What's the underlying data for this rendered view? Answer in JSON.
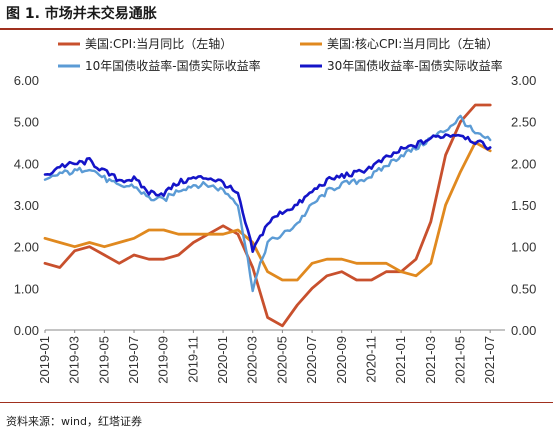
{
  "title": "图 1. 市场并未交易通胀",
  "source": "资料来源：wind，红塔证券",
  "chart_data": {
    "type": "line",
    "title": "",
    "xlabel": "",
    "ylabel_left": "",
    "ylabel_right": "",
    "ylim_left": [
      0,
      6
    ],
    "ylim_right": [
      0,
      3
    ],
    "yticks_left": [
      "0.00",
      "1.00",
      "2.00",
      "3.00",
      "4.00",
      "5.00",
      "6.00"
    ],
    "yticks_right": [
      "0.00",
      "0.50",
      "1.00",
      "1.50",
      "2.00",
      "2.50",
      "3.00"
    ],
    "x_start": "2019-01",
    "x_end": "2021-08",
    "x_tick_labels": [
      "2019-01",
      "2019-03",
      "2019-05",
      "2019-07",
      "2019-09",
      "2019-11",
      "2020-01",
      "2020-03",
      "2020-05",
      "2020-07",
      "2020-09",
      "2020-11",
      "2021-01",
      "2021-03",
      "2021-05",
      "2021-07"
    ],
    "grid": false,
    "legend_position": "top",
    "series": [
      {
        "name": "美国:CPI:当月同比（左轴）",
        "axis": "left",
        "color": "#c8502d",
        "x": [
          "2019-01",
          "2019-02",
          "2019-03",
          "2019-04",
          "2019-05",
          "2019-06",
          "2019-07",
          "2019-08",
          "2019-09",
          "2019-10",
          "2019-11",
          "2019-12",
          "2020-01",
          "2020-02",
          "2020-03",
          "2020-04",
          "2020-05",
          "2020-06",
          "2020-07",
          "2020-08",
          "2020-09",
          "2020-10",
          "2020-11",
          "2020-12",
          "2021-01",
          "2021-02",
          "2021-03",
          "2021-04",
          "2021-05",
          "2021-06",
          "2021-07"
        ],
        "y": [
          1.6,
          1.5,
          1.9,
          2.0,
          1.8,
          1.6,
          1.8,
          1.7,
          1.7,
          1.8,
          2.1,
          2.3,
          2.5,
          2.3,
          1.5,
          0.3,
          0.1,
          0.6,
          1.0,
          1.3,
          1.4,
          1.2,
          1.2,
          1.4,
          1.4,
          1.7,
          2.6,
          4.2,
          5.0,
          5.4,
          5.4
        ]
      },
      {
        "name": "美国:核心CPI:当月同比（左轴）",
        "axis": "left",
        "color": "#e0891f",
        "x": [
          "2019-01",
          "2019-02",
          "2019-03",
          "2019-04",
          "2019-05",
          "2019-06",
          "2019-07",
          "2019-08",
          "2019-09",
          "2019-10",
          "2019-11",
          "2019-12",
          "2020-01",
          "2020-02",
          "2020-03",
          "2020-04",
          "2020-05",
          "2020-06",
          "2020-07",
          "2020-08",
          "2020-09",
          "2020-10",
          "2020-11",
          "2020-12",
          "2021-01",
          "2021-02",
          "2021-03",
          "2021-04",
          "2021-05",
          "2021-06",
          "2021-07"
        ],
        "y": [
          2.2,
          2.1,
          2.0,
          2.1,
          2.0,
          2.1,
          2.2,
          2.4,
          2.4,
          2.3,
          2.3,
          2.3,
          2.3,
          2.4,
          2.1,
          1.4,
          1.2,
          1.2,
          1.6,
          1.7,
          1.7,
          1.6,
          1.6,
          1.6,
          1.4,
          1.3,
          1.6,
          3.0,
          3.8,
          4.5,
          4.3
        ]
      },
      {
        "name": "10年国债收益率-国债实际收益率",
        "axis": "right",
        "color": "#5b9bd5",
        "x": [
          "2019-01",
          "2019-02",
          "2019-03",
          "2019-04",
          "2019-05",
          "2019-06",
          "2019-07",
          "2019-08",
          "2019-09",
          "2019-10",
          "2019-11",
          "2019-12",
          "2020-01",
          "2020-02",
          "2020-03",
          "2020-04",
          "2020-05",
          "2020-06",
          "2020-07",
          "2020-08",
          "2020-09",
          "2020-10",
          "2020-11",
          "2020-12",
          "2021-01",
          "2021-02",
          "2021-03",
          "2021-04",
          "2021-05",
          "2021-06",
          "2021-07"
        ],
        "y": [
          1.78,
          1.88,
          1.9,
          1.95,
          1.82,
          1.72,
          1.73,
          1.58,
          1.56,
          1.68,
          1.74,
          1.74,
          1.68,
          1.52,
          0.5,
          1.05,
          1.14,
          1.28,
          1.5,
          1.66,
          1.75,
          1.78,
          1.85,
          1.97,
          2.1,
          2.18,
          2.3,
          2.4,
          2.55,
          2.35,
          2.28
        ]
      },
      {
        "name": "30年国债收益率-国债实际收益率",
        "axis": "right",
        "color": "#1414c8",
        "x": [
          "2019-01",
          "2019-02",
          "2019-03",
          "2019-04",
          "2019-05",
          "2019-06",
          "2019-07",
          "2019-08",
          "2019-09",
          "2019-10",
          "2019-11",
          "2019-12",
          "2020-01",
          "2020-02",
          "2020-03",
          "2020-04",
          "2020-05",
          "2020-06",
          "2020-07",
          "2020-08",
          "2020-09",
          "2020-10",
          "2020-11",
          "2020-12",
          "2021-01",
          "2021-02",
          "2021-03",
          "2021-04",
          "2021-05",
          "2021-06",
          "2021-07"
        ],
        "y": [
          1.84,
          1.97,
          1.99,
          2.03,
          1.9,
          1.8,
          1.81,
          1.65,
          1.64,
          1.77,
          1.82,
          1.83,
          1.77,
          1.62,
          0.95,
          1.28,
          1.42,
          1.5,
          1.66,
          1.79,
          1.85,
          1.88,
          1.96,
          2.06,
          2.16,
          2.22,
          2.3,
          2.34,
          2.35,
          2.26,
          2.19
        ]
      }
    ]
  }
}
